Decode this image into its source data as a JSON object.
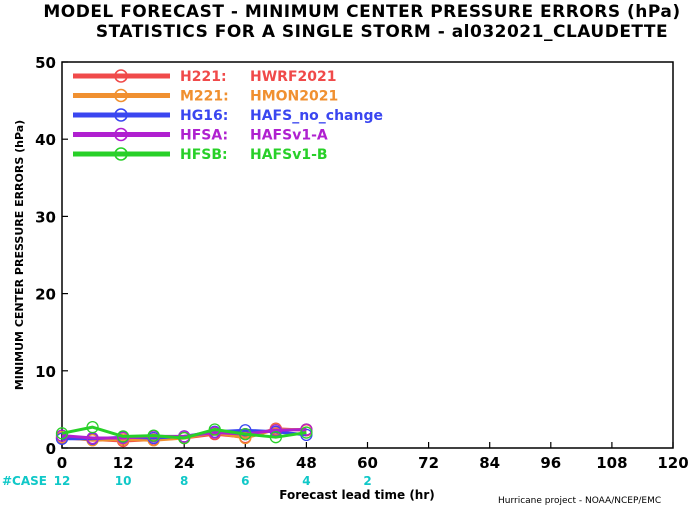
{
  "chart_data": {
    "type": "line",
    "title_line1": "MODEL FORECAST - MINIMUM CENTER PRESSURE ERRORS (hPa)",
    "title_line2": "STATISTICS FOR A SINGLE STORM - al032021_CLAUDETTE",
    "ylabel": "MINIMUM CENTER PRESSURE ERRORS (hPa)",
    "xlabel": "Forecast lead time (hr)",
    "credit": "Hurricane project - NOAA/NCEP/EMC",
    "case_label": "#CASE",
    "xlim": [
      0,
      120
    ],
    "ylim": [
      0,
      50
    ],
    "xticks": [
      0,
      12,
      24,
      36,
      48,
      60,
      72,
      84,
      96,
      108,
      120
    ],
    "yticks": [
      0,
      10,
      20,
      30,
      40,
      50
    ],
    "x": [
      0,
      6,
      12,
      18,
      24,
      30,
      36,
      42,
      48
    ],
    "series": [
      {
        "name": "H221:",
        "desc": "HWRF2021",
        "color": "#f04a4a",
        "values": [
          1.3,
          1.1,
          0.9,
          1.1,
          1.3,
          1.8,
          1.4,
          2.5,
          2.3
        ]
      },
      {
        "name": "M221:",
        "desc": "HMON2021",
        "color": "#f09030",
        "values": [
          1.4,
          1.0,
          1.1,
          1.0,
          1.3,
          2.0,
          1.3,
          2.4,
          2.4
        ]
      },
      {
        "name": "HG16:",
        "desc": "HAFS_no_change",
        "color": "#3a46f0",
        "values": [
          1.2,
          1.2,
          1.4,
          1.3,
          1.5,
          2.1,
          2.3,
          2.1,
          1.7
        ]
      },
      {
        "name": "HFSA:",
        "desc": "HAFSv1-A",
        "color": "#b020d0",
        "values": [
          1.6,
          1.3,
          1.3,
          1.5,
          1.5,
          2.0,
          1.8,
          2.3,
          2.4
        ]
      },
      {
        "name": "HFSB:",
        "desc": "HAFSv1-B",
        "color": "#28d028",
        "values": [
          1.9,
          2.7,
          1.5,
          1.6,
          1.3,
          2.4,
          1.8,
          1.4,
          2.0
        ]
      }
    ],
    "cases": [
      {
        "x": 0,
        "n": "12"
      },
      {
        "x": 12,
        "n": "10"
      },
      {
        "x": 24,
        "n": "8"
      },
      {
        "x": 36,
        "n": "6"
      },
      {
        "x": 48,
        "n": "4"
      },
      {
        "x": 60,
        "n": "2"
      }
    ],
    "grid": false,
    "legend_position": "top-left"
  }
}
